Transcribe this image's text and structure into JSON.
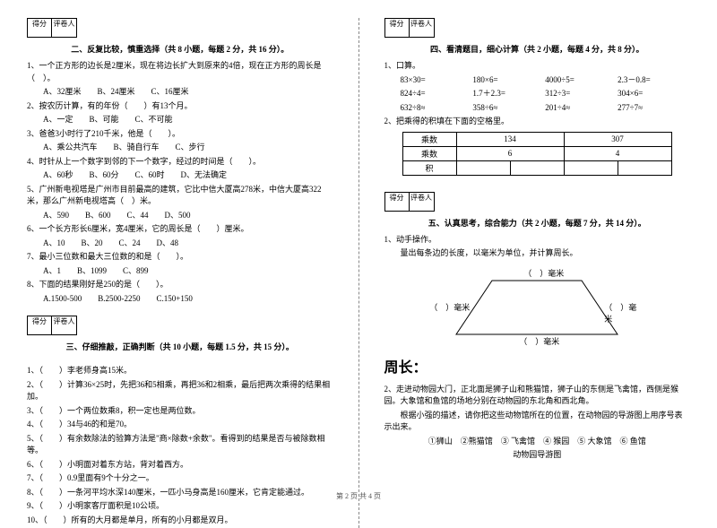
{
  "score_labels": {
    "score": "得分",
    "grader": "评卷人"
  },
  "section2": {
    "title": "二、反复比较，慎重选择（共 8 小题，每题 2 分，共 16 分）。",
    "q1": "1、一个正方形的边长是2厘米，现在将边长扩大到原来的4倍，现在正方形的周长是（　）。",
    "q1opts": "A、32厘米　　B、24厘米　　C、16厘米",
    "q2": "2、按农历计算，有的年份（　　）有13个月。",
    "q2opts": "A、一定　　B、可能　　C、不可能",
    "q3": "3、爸爸3小时行了210千米，他是（　　）。",
    "q3opts": "A、乘公共汽车　　B、骑自行车　　C、步行",
    "q4": "4、时针从上一个数字到邻的下一个数字，经过的时间是（　　）。",
    "q4opts": "A、60秒　　B、60分　　C、60时　　D、无法确定",
    "q5": "5、广州新电视塔是广州市目前最高的建筑，它比中信大厦高278米，中信大厦高322米，那么广州新电视塔高（　）米。",
    "q5opts": "A、590　　B、600　　C、44　　D、500",
    "q6": "6、一个长方形长6厘米，宽4厘米，它的周长是（　　）厘米。",
    "q6opts": "A、10　　B、20　　C、24　　D、48",
    "q7": "7、最小三位数和最大三位数的和是（　　）。",
    "q7opts": "A、1　　B、1099　　C、899",
    "q8": "8、下面的结果刚好是250的是（　　）。",
    "q8opts": "A.1500-500　　B.2500-2250　　C.150+150"
  },
  "section3": {
    "title": "三、仔细推敲，正确判断（共 10 小题，每题 1.5 分，共 15 分）。",
    "items": [
      "1、（　　）李老师身高15米。",
      "2、（　　）计算36×25时，先把36和5相乘，再把36和2相乘，最后把两次乘得的结果相加。",
      "3、（　　）一个两位数乘8，积一定也是两位数。",
      "4、（　　）34与46的和是70。",
      "5、（　　）有余数除法的验算方法是\"商×除数+余数\"。看得到的结果是否与被除数相等。",
      "6、（　　）小明面对着东方站，背对着西方。",
      "7、（　　）0.9里面有9个十分之一。",
      "8、（　　）一条河平均水深140厘米，一匹小马身高是160厘米，它肯定能通过。",
      "9、（　　）小明家客厅面积是10公顷。",
      "10、（　　）所有的大月都是单月，所有的小月都是双月。"
    ]
  },
  "section4": {
    "title": "四、看清题目，细心计算（共 2 小题，每题 4 分，共 8 分）。",
    "q1": "1、口算。",
    "calc_rows": [
      [
        "83×30=",
        "180×6=",
        "4000÷5=",
        "2.3－0.8="
      ],
      [
        "824÷4=",
        "1.7＋2.3=",
        "312÷3=",
        "304×6="
      ],
      [
        "632÷8≈",
        "358÷6≈",
        "201÷4≈",
        "277÷7≈"
      ]
    ],
    "q2": "2、把乘得的积填在下面的空格里。",
    "table": {
      "r1": [
        "乘数",
        "134",
        "307"
      ],
      "r2": [
        "乘数",
        "6",
        "4"
      ],
      "r3": [
        "积",
        "",
        ""
      ]
    }
  },
  "section5": {
    "title": "五、认真思考，综合能力（共 2 小题，每题 7 分，共 14 分）。",
    "q1": "1、动手操作。",
    "q1b": "量出每条边的长度，以毫米为单位，并计算周长。",
    "unit": "）毫米",
    "lp": "（",
    "zhou": "周长：",
    "q2a": "2、走进动物园大门，正北面是狮子山和熊猫馆，狮子山的东侧是飞禽馆，西侧是猴园。大象馆和鱼馆的场地分别在动物园的东北角和西北角。",
    "q2b": "　　根据小强的描述，请你把这些动物馆所在的位置，在动物园的导游图上用序号表示出来。",
    "q2c": "①狮山　②熊猫馆　③ 飞禽馆　④ 猴园　⑤ 大象馆　⑥ 鱼馆",
    "q2d": "动物园导游图"
  },
  "footer": "第 2 页 共 4 页"
}
